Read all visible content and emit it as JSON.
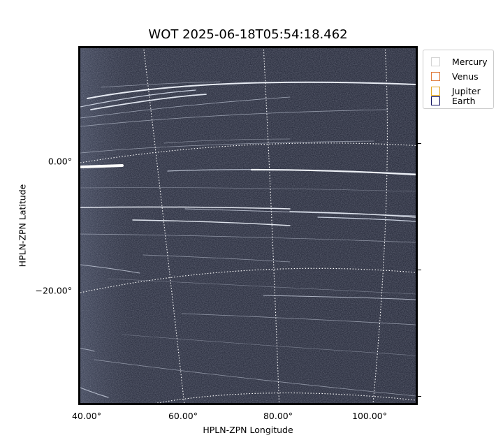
{
  "figure": {
    "title": "WOT 2025-06-18T05:54:18.462",
    "xlabel": "HPLN-ZPN Longitude",
    "ylabel": "HPLN-ZPN Latitude",
    "x_ticks": [
      "40.00°",
      "60.00°",
      "80.00°",
      "100.00°"
    ],
    "y_ticks": [
      "0.00°",
      "−20.00°"
    ],
    "image_description_colormap": "bone",
    "grid": "dotted coordinate grid"
  },
  "legend": {
    "placement": "top-right outside plot",
    "items": [
      {
        "label": "Mercury",
        "color": "#d3d3d3"
      },
      {
        "label": "Venus",
        "color": "#e07b3a"
      },
      {
        "label": "Jupiter",
        "color": "#e2a51c"
      },
      {
        "label": "Earth",
        "color": "#101060"
      }
    ]
  }
}
